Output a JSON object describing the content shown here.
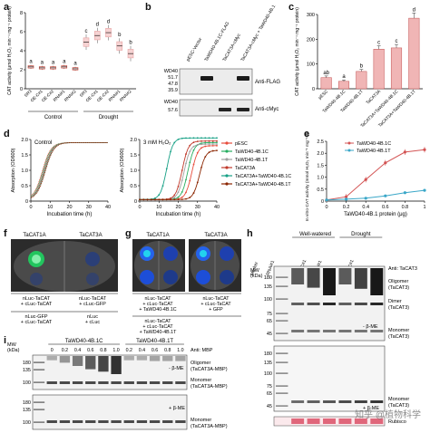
{
  "panels": {
    "a": {
      "label": "a",
      "chart_data": {
        "type": "box",
        "ylabel": "CAT activity (μmol H₂O₂ min⁻¹ mg⁻¹ protein)",
        "ylim": [
          0,
          8
        ],
        "yticks": [
          "0",
          "2",
          "4",
          "6",
          "8"
        ],
        "categories": [
          "SR3",
          "OE-C#1",
          "OE-C#2",
          "RNAi#1",
          "RNAi#2"
        ],
        "groups": [
          "Control",
          "Drought"
        ],
        "series": [
          {
            "group": "Control",
            "values": [
              2.3,
              2.2,
              2.2,
              2.3,
              2.1
            ],
            "letters": [
              "a",
              "a",
              "a",
              "a",
              "a"
            ]
          },
          {
            "group": "Drought",
            "values": [
              4.9,
              5.6,
              5.9,
              4.5,
              3.7
            ],
            "letters": [
              "c",
              "d",
              "d",
              "b",
              "b"
            ]
          }
        ]
      }
    },
    "b": {
      "label": "b",
      "lanes": [
        "pESC-Vector",
        "TaWD40-4B.1C-FLAG",
        "TaCAT3A-cMyc",
        "TaCAT3A-cMyc + TaWD40-4B.1C-FLAG"
      ],
      "markers_top": [
        "WD40",
        "51.7",
        "47.8",
        "35.9"
      ],
      "markers_bottom": [
        "WD40",
        "57.6"
      ],
      "antibodies": [
        "Anti-FLAG",
        "Anti-cMyc"
      ]
    },
    "c": {
      "label": "c",
      "chart_data": {
        "type": "bar",
        "ylabel": "CAT activity (μmol H₂O₂ min⁻¹ mg⁻¹ protein)",
        "ylim": [
          0,
          300
        ],
        "yticks": [
          "0",
          "100",
          "200",
          "300"
        ],
        "categories": [
          "pESC",
          "TaWD40-4B.1C",
          "TaWD40-4B.1T",
          "TaCAT3A",
          "TaCAT3A+TaWD40-4B.1C",
          "TaCAT3A+TaWD40-4B.1T"
        ],
        "values": [
          45,
          30,
          70,
          160,
          165,
          285
        ],
        "letters": [
          "ab",
          "a",
          "b",
          "c",
          "c",
          "d"
        ]
      }
    },
    "d": {
      "label": "d",
      "left_title": "Control",
      "right_title": "3 mM H₂O₂",
      "ylabel": "Absorption (OD600)",
      "xlabel": "Incubation time (h)",
      "chart_data": {
        "type": "line",
        "ylim": [
          0,
          2.0
        ],
        "xlim": [
          0,
          40
        ],
        "yticks": [
          "0",
          "0.5",
          "1.0",
          "1.5",
          "2.0"
        ],
        "xticks": [
          "0",
          "10",
          "20",
          "30",
          "40"
        ],
        "series": [
          {
            "name": "pESC",
            "color": "#e74c3c"
          },
          {
            "name": "TaWD40-4B.1C",
            "color": "#27ae60"
          },
          {
            "name": "TaWD40-4B.1T",
            "color": "#a0a0a0"
          },
          {
            "name": "TaCAT3A",
            "color": "#c0392b"
          },
          {
            "name": "TaCAT3A+TaWD40-4B.1C",
            "color": "#16a085"
          },
          {
            "name": "TaCAT3A+TaWD40-4B.1T",
            "color": "#8b2500"
          }
        ]
      }
    },
    "e": {
      "label": "e",
      "chart_data": {
        "type": "line",
        "ylabel": "In vitro CAT activity (mmol H₂O₂ min⁻¹ mg⁻¹ protein)",
        "xlabel": "TaWD40-4B.1 protein (μg)",
        "ylim": [
          0,
          2.5
        ],
        "yticks": [
          "0",
          "0.5",
          "1.0",
          "1.5",
          "2.0",
          "2.5"
        ],
        "x": [
          0,
          0.2,
          0.4,
          0.6,
          0.8,
          1.0
        ],
        "series": [
          {
            "name": "TaWD40-4B.1C",
            "color": "#d35454",
            "values": [
              0.05,
              0.18,
              0.9,
              1.6,
              2.05,
              2.15
            ]
          },
          {
            "name": "TaWD40-4B.1T",
            "color": "#3aa7c8",
            "values": [
              0.05,
              0.08,
              0.12,
              0.22,
              0.35,
              0.45
            ]
          }
        ]
      }
    },
    "f": {
      "label": "f",
      "col_titles": [
        "TaCAT1A",
        "TaCAT3A"
      ],
      "constructs_left": [
        "nLuc-TaCAT",
        "+ cLuc-TaCAT"
      ],
      "constructs_right": [
        "nLuc-TaCAT",
        "+ cLuc-GFP"
      ],
      "constructs_left2": [
        "nLuc-GFP",
        "+ cLuc-TaCAT"
      ],
      "constructs_right2": [
        "nLuc",
        "+ cLuc"
      ]
    },
    "g": {
      "label": "g",
      "col_titles": [
        "TaCAT1A",
        "TaCAT3A"
      ],
      "constructs_left": [
        "nLuc-TaCAT",
        "+ cLuc-TaCAT",
        "+ TaWD40-4B.1C"
      ],
      "constructs_right": [
        "nLuc-TaCAT",
        "+ cLuc-TaCAT",
        "+ GFP"
      ],
      "constructs_left2": [
        "nLuc-TaCAT",
        "+ cLuc-TaCAT",
        "+ TaWD40-4B.1T"
      ]
    },
    "h": {
      "label": "h",
      "groups": [
        "Well-watered",
        "Drought"
      ],
      "lanes": [
        "Marker",
        "RNAi#1",
        "SR3",
        "OE-C#1",
        "RNAi#1",
        "SR3",
        "OE-C#1"
      ],
      "mw_label": "MW (kDa)",
      "markers": [
        "180",
        "135",
        "100",
        "75",
        "65",
        "45"
      ],
      "antibody": "Anti: TaCAT3",
      "bands": [
        "Oligomer (TaCAT3)",
        "Dimer (TaCAT3)",
        "Monomer (TaCAT3)"
      ],
      "treatments": [
        "- β-ME",
        "+ β-ME"
      ],
      "loading": "Rubisco",
      "markers_bottom": [
        "180",
        "135",
        "100",
        "75",
        "65",
        "45"
      ]
    },
    "i": {
      "label": "i",
      "groups": [
        "TaWD40-4B.1C",
        "TaWD40-4B.1T"
      ],
      "antibody": "Anti: MBP",
      "mw_label": "MW (kDa)",
      "lanes": [
        "Marker",
        "0",
        "0.2",
        "0.4",
        "0.6",
        "0.8",
        "1.0",
        "0.2",
        "0.4",
        "0.6",
        "0.8",
        "1.0"
      ],
      "markers_top": [
        "180",
        "135",
        "100"
      ],
      "markers_bottom": [
        "180",
        "135",
        "100"
      ],
      "bands": [
        "Oligomer (TaCAT3A-MBP)",
        "Monomer (TaCAT3A-MBP)"
      ],
      "treatments": [
        "- β-ME",
        "+ β-ME"
      ]
    }
  },
  "watermark": "知乎 @植物科学"
}
